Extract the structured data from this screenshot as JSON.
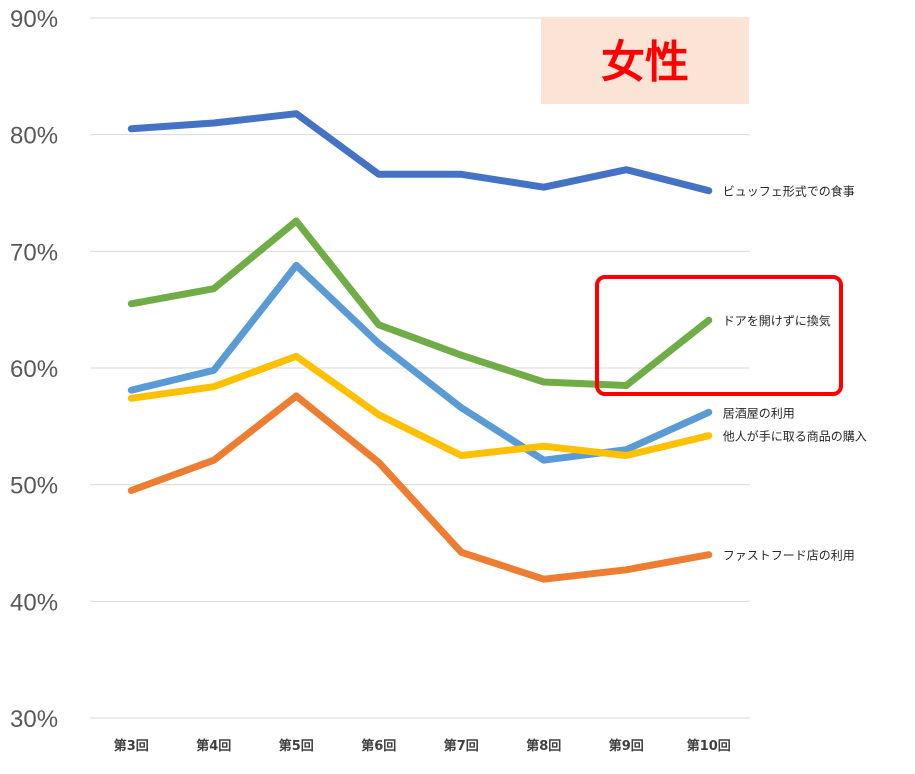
{
  "chart_data": {
    "type": "line",
    "title": "女性",
    "categories": [
      "第3回",
      "第4回",
      "第5回",
      "第6回",
      "第7回",
      "第8回",
      "第9回",
      "第10回"
    ],
    "ylim": [
      0.3,
      0.9
    ],
    "yticks": [
      "90%",
      "80%",
      "70%",
      "60%",
      "50%",
      "40%",
      "30%"
    ],
    "grid": true,
    "series": [
      {
        "name": "ビュッフェ形式での食事",
        "color": "#4472c4",
        "values": [
          0.805,
          0.81,
          0.818,
          0.766,
          0.766,
          0.755,
          0.77,
          0.752
        ]
      },
      {
        "name": "ドアを開けずに換気",
        "color": "#70ad47",
        "values": [
          0.655,
          0.668,
          0.726,
          0.637,
          0.611,
          0.588,
          0.585,
          0.641
        ]
      },
      {
        "name": "居酒屋の利用",
        "color": "#5b9bd5",
        "values": [
          0.581,
          0.598,
          0.688,
          0.621,
          0.566,
          0.521,
          0.53,
          0.562
        ]
      },
      {
        "name": "他人が手に取る商品の購入",
        "color": "#ffc000",
        "values": [
          0.574,
          0.584,
          0.61,
          0.56,
          0.525,
          0.533,
          0.525,
          0.542
        ]
      },
      {
        "name": "ファストフード店の利用",
        "color": "#ed7d31",
        "values": [
          0.495,
          0.521,
          0.576,
          0.519,
          0.442,
          0.419,
          0.427,
          0.44
        ]
      }
    ],
    "highlight_series": "ドアを開けずに換気",
    "highlight_color": "#ff0000",
    "title_background": "#fbe3d6",
    "title_color": "#ff0000"
  }
}
